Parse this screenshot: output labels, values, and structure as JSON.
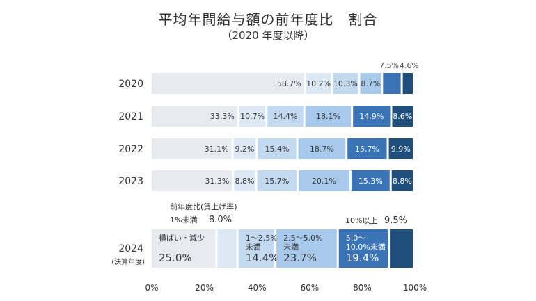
{
  "title": "平均年間給与額の前年度比　割合",
  "subtitle": "（2020 年度以降）",
  "chart_data": {
    "type": "bar",
    "orientation": "horizontal",
    "stacked": true,
    "categories": [
      "2020",
      "2021",
      "2022",
      "2023"
    ],
    "series": [
      {
        "color": "#e7ebef",
        "values": [
          58.7,
          33.3,
          31.1,
          31.3
        ]
      },
      {
        "color": "#dde8f5",
        "values": [
          10.2,
          10.7,
          9.2,
          8.8
        ]
      },
      {
        "color": "#c3d9f0",
        "values": [
          10.3,
          14.4,
          15.4,
          15.7
        ]
      },
      {
        "color": "#a7c9ec",
        "values": [
          8.7,
          18.1,
          18.7,
          20.1
        ]
      },
      {
        "color": "#3a74b6",
        "values": [
          7.5,
          14.9,
          15.7,
          15.3
        ]
      },
      {
        "color": "#1f4e7c",
        "values": [
          4.6,
          8.6,
          9.9,
          8.8
        ]
      }
    ],
    "label_text_colors": [
      "#333333",
      "#333333",
      "#333333",
      "#333333",
      "#ffffff",
      "#ffffff"
    ],
    "detail_row": {
      "year": "2024",
      "note": "(決算年度)",
      "segments": [
        {
          "label_lines": [
            "横ばい・減少"
          ],
          "value_label": "25.0%",
          "value": 25.0,
          "color": "#e7ebef",
          "text_color": "#333333"
        },
        {
          "label_lines": [],
          "value_label": "",
          "value": 8.0,
          "color": "#dde8f5",
          "text_color": "#333333"
        },
        {
          "label_lines": [
            "1～2.5%",
            "未満"
          ],
          "value_label": "14.4%",
          "value": 14.4,
          "color": "#c3d9f0",
          "text_color": "#333333"
        },
        {
          "label_lines": [
            "2.5～5.0%",
            "未満"
          ],
          "value_label": "23.7%",
          "value": 23.7,
          "color": "#a7c9ec",
          "text_color": "#333333"
        },
        {
          "label_lines": [
            "5.0～",
            "10.0%未満"
          ],
          "value_label": "19.4%",
          "value": 19.4,
          "color": "#3a74b6",
          "text_color": "#ffffff"
        },
        {
          "label_lines": [],
          "value_label": "",
          "value": 9.5,
          "color": "#1f4e7c",
          "text_color": "#ffffff"
        }
      ],
      "annotation_header": "前年度比(賃上げ率)",
      "annotation_lt1_label": "1%未満",
      "annotation_lt1_value": "8.0%",
      "annotation_ge10_label": "10%以上",
      "annotation_ge10_value": "9.5%"
    },
    "x_ticks": [
      "0%",
      "20%",
      "40%",
      "60%",
      "80%",
      "100%"
    ],
    "xlim": [
      0,
      100
    ],
    "grid": false,
    "legend": "none"
  }
}
